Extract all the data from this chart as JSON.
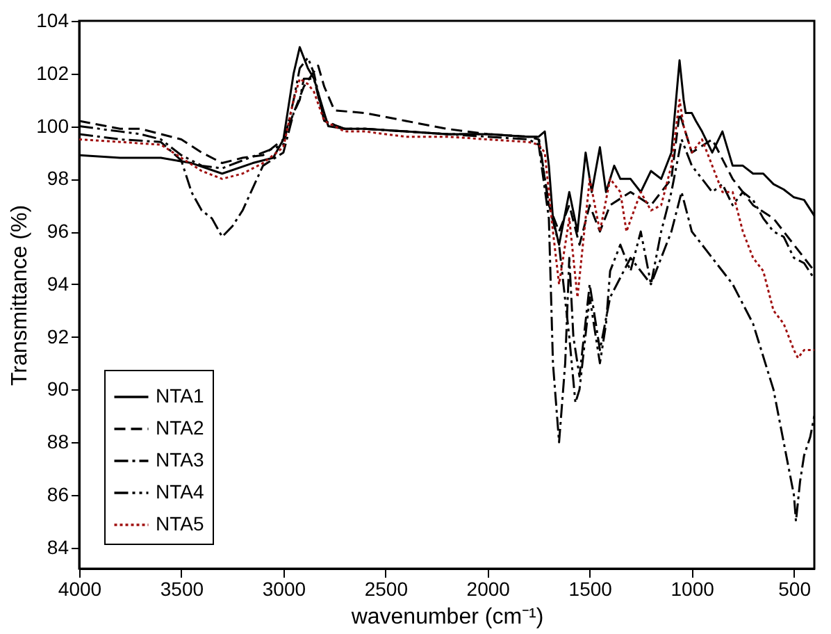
{
  "chart_data": {
    "type": "line",
    "xlabel": "wavenumber (cm⁻¹)",
    "ylabel": "Transmittance (%)",
    "xlim": [
      4000,
      400
    ],
    "xticks": [
      4000,
      3500,
      3000,
      2500,
      2000,
      1500,
      1000,
      500
    ],
    "ylim": [
      83.2,
      104
    ],
    "yticks": [
      84,
      86,
      88,
      90,
      92,
      94,
      96,
      98,
      100,
      102,
      104
    ],
    "grid": false,
    "legend": "bottom left",
    "marker": "none",
    "series": [
      {
        "name": "NTA1",
        "color": "#000000",
        "line_style": "solid",
        "x": [
          4000,
          3800,
          3600,
          3450,
          3300,
          3150,
          3050,
          3000,
          2950,
          2920,
          2880,
          2850,
          2800,
          2780,
          2700,
          2600,
          2400,
          2200,
          2000,
          1800,
          1750,
          1720,
          1700,
          1680,
          1650,
          1600,
          1560,
          1520,
          1490,
          1450,
          1420,
          1380,
          1350,
          1300,
          1250,
          1200,
          1150,
          1100,
          1060,
          1040,
          1030,
          1000,
          980,
          950,
          900,
          850,
          800,
          750,
          700,
          650,
          600,
          550,
          500,
          450,
          400
        ],
        "values": [
          98.9,
          98.8,
          98.8,
          98.6,
          98.2,
          98.6,
          98.8,
          99.5,
          102,
          103,
          102.2,
          101.8,
          100.5,
          100,
          99.9,
          99.9,
          99.8,
          99.7,
          99.7,
          99.6,
          99.6,
          99.8,
          98.5,
          96.5,
          95.5,
          97.5,
          96,
          99,
          97.5,
          99.2,
          97.5,
          98.5,
          98,
          98,
          97.5,
          98.3,
          98,
          99,
          102.5,
          101,
          100.5,
          100.5,
          100.2,
          99.8,
          99,
          99.8,
          98.5,
          98.5,
          98.2,
          98.2,
          97.8,
          97.6,
          97.3,
          97.2,
          96.6
        ]
      },
      {
        "name": "NTA2",
        "color": "#000000",
        "line_style": "dashed",
        "x": [
          4000,
          3800,
          3700,
          3500,
          3400,
          3300,
          3200,
          3100,
          3000,
          2950,
          2900,
          2830,
          2800,
          2750,
          2600,
          2400,
          2200,
          2000,
          1800,
          1750,
          1700,
          1650,
          1600,
          1550,
          1500,
          1450,
          1400,
          1300,
          1200,
          1100,
          1060,
          1000,
          900,
          800,
          700,
          600,
          500,
          450,
          400
        ],
        "values": [
          100.2,
          99.9,
          99.9,
          99.5,
          99,
          98.6,
          98.8,
          98.9,
          99.5,
          100.5,
          101.5,
          102.3,
          101.5,
          100.6,
          100.5,
          100.2,
          99.9,
          99.7,
          99.6,
          99.5,
          97,
          96,
          97,
          95.5,
          97,
          96,
          97,
          97.5,
          97,
          98,
          100.5,
          99,
          99.5,
          98,
          97,
          96.5,
          95.5,
          95,
          94.5
        ]
      },
      {
        "name": "NTA3",
        "color": "#000000",
        "line_style": "dashdot",
        "x": [
          4000,
          3800,
          3600,
          3500,
          3450,
          3400,
          3350,
          3300,
          3250,
          3200,
          3100,
          3000,
          2950,
          2920,
          2900,
          2850,
          2800,
          2700,
          2600,
          2400,
          2200,
          2000,
          1800,
          1750,
          1700,
          1680,
          1650,
          1620,
          1600,
          1580,
          1550,
          1500,
          1450,
          1400,
          1300,
          1200,
          1100,
          1050,
          1000,
          900,
          800,
          700,
          600,
          550,
          500,
          490,
          470,
          450,
          420,
          400
        ],
        "values": [
          99.7,
          99.5,
          99.4,
          98.7,
          97.5,
          96.8,
          96.5,
          95.8,
          96.2,
          96.8,
          98.5,
          99,
          100.5,
          101,
          101.8,
          101.8,
          100.2,
          99.9,
          99.9,
          99.8,
          99.7,
          99.6,
          99.5,
          99.3,
          96.5,
          91,
          88,
          91,
          95,
          92,
          90.5,
          94,
          91.5,
          93.5,
          95,
          94,
          96,
          97.5,
          96,
          95,
          94,
          92.5,
          90,
          88,
          86,
          85,
          86.5,
          87.5,
          88.2,
          89
        ]
      },
      {
        "name": "NTA4",
        "color": "#000000",
        "line_style": "dashdotdot",
        "x": [
          4000,
          3800,
          3700,
          3600,
          3500,
          3400,
          3300,
          3200,
          3100,
          3000,
          2950,
          2920,
          2880,
          2850,
          2800,
          2700,
          2600,
          2400,
          2200,
          2000,
          1800,
          1750,
          1700,
          1650,
          1600,
          1570,
          1550,
          1500,
          1450,
          1420,
          1400,
          1350,
          1300,
          1250,
          1200,
          1150,
          1100,
          1050,
          1000,
          950,
          900,
          850,
          800,
          750,
          700,
          650,
          600,
          550,
          500,
          450,
          400
        ],
        "values": [
          100,
          99.8,
          99.7,
          99.5,
          98.9,
          98.5,
          98.4,
          98.7,
          99,
          99.3,
          101,
          102.2,
          102.6,
          102,
          100.2,
          99.9,
          99.9,
          99.8,
          99.7,
          99.7,
          99.6,
          99.6,
          97,
          95.5,
          92,
          89.5,
          90,
          93.5,
          91,
          92.5,
          94.5,
          95.5,
          94.5,
          96,
          94,
          96,
          97.5,
          99.5,
          98.5,
          98,
          97.5,
          97.8,
          97,
          97.5,
          97.2,
          96.5,
          96,
          95.8,
          95,
          94.8,
          94.2
        ]
      },
      {
        "name": "NTA5",
        "color": "#a01010",
        "line_style": "dotted",
        "x": [
          4000,
          3800,
          3600,
          3500,
          3400,
          3300,
          3200,
          3100,
          3000,
          2950,
          2920,
          2880,
          2850,
          2800,
          2700,
          2600,
          2400,
          2200,
          2000,
          1800,
          1750,
          1720,
          1680,
          1650,
          1600,
          1560,
          1500,
          1450,
          1400,
          1350,
          1320,
          1250,
          1200,
          1150,
          1100,
          1060,
          1040,
          1000,
          950,
          900,
          850,
          800,
          750,
          700,
          650,
          600,
          550,
          500,
          480,
          450,
          400
        ],
        "values": [
          99.5,
          99.4,
          99.3,
          98.8,
          98.3,
          98,
          98.2,
          98.6,
          99.2,
          101,
          101.8,
          101.6,
          101.3,
          100.2,
          99.8,
          99.8,
          99.6,
          99.6,
          99.5,
          99.4,
          99.3,
          99,
          96,
          94,
          96.5,
          93.5,
          98,
          96,
          98,
          97.5,
          96,
          97.5,
          96.8,
          97,
          98.5,
          101,
          100,
          99,
          99.5,
          98.5,
          97.5,
          97.5,
          96,
          95,
          94.5,
          93,
          92.5,
          91.5,
          91.2,
          91.5,
          91.5
        ]
      }
    ]
  }
}
